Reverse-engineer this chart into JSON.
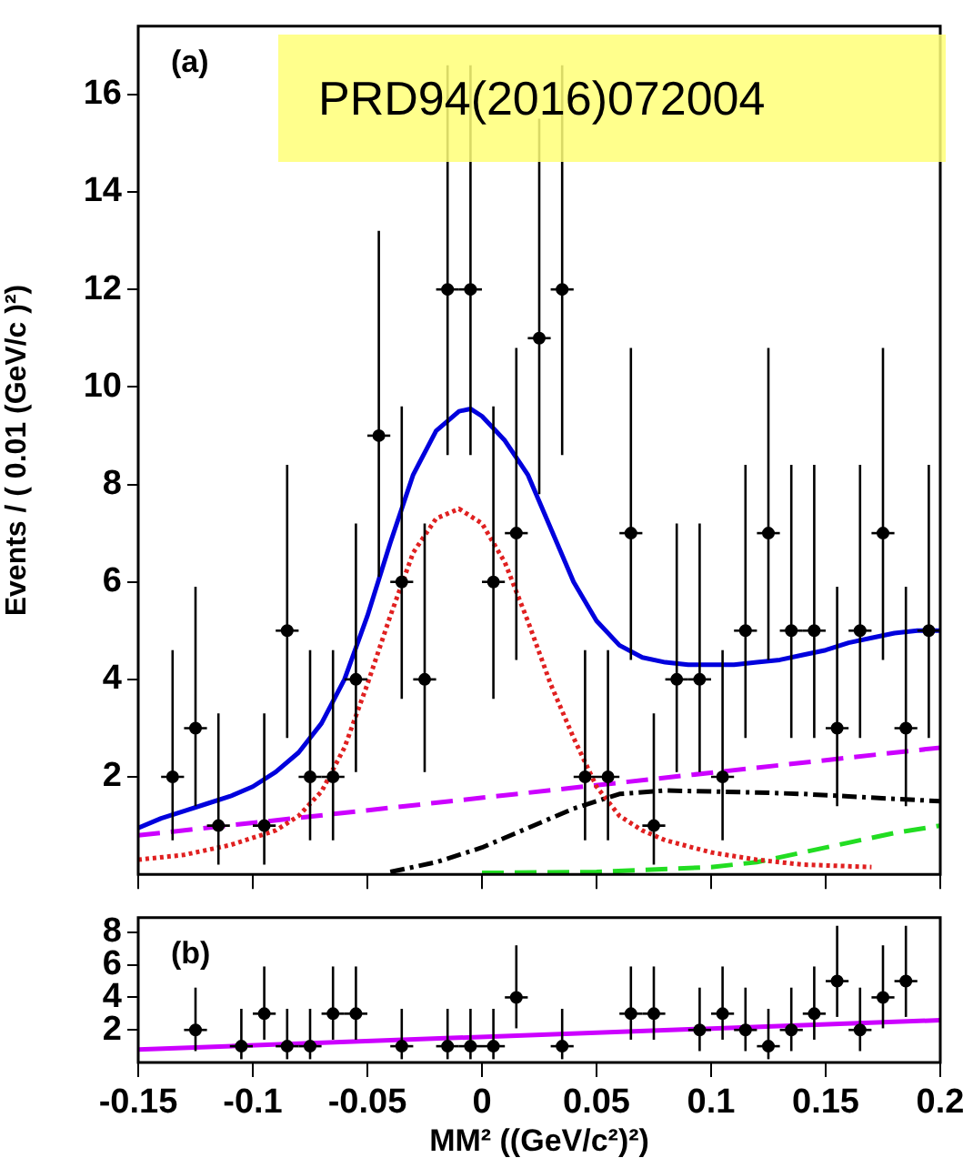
{
  "chart_data": [
    {
      "type": "scatter",
      "ylabel": "Events / ( 0.01 (GeV/c )²)",
      "annotations": [
        "(a)",
        "PRD94(2016)072004"
      ],
      "xlim": [
        -0.15,
        0.2
      ],
      "xticks": [
        -0.15,
        -0.1,
        -0.05,
        0,
        0.05,
        0.1,
        0.15,
        0.2
      ],
      "ylim": [
        0,
        17.4
      ],
      "yticks": [
        2,
        4,
        6,
        8,
        10,
        12,
        14,
        16
      ],
      "tick_labels": "y",
      "grid": false,
      "legend": false,
      "series": [
        {
          "type": "scatter",
          "color": "#000000",
          "marker": "circle",
          "x": [
            -0.135,
            -0.125,
            -0.115,
            -0.095,
            -0.085,
            -0.075,
            -0.065,
            -0.055,
            -0.045,
            -0.035,
            -0.025,
            -0.015,
            -0.005,
            0.005,
            0.015,
            0.025,
            0.035,
            0.045,
            0.055,
            0.065,
            0.075,
            0.085,
            0.095,
            0.105,
            0.115,
            0.125,
            0.135,
            0.145,
            0.155,
            0.165,
            0.175,
            0.185,
            0.195
          ],
          "values": [
            2,
            3,
            1,
            1,
            5,
            2,
            2,
            4,
            9,
            6,
            4,
            12,
            12,
            6,
            7,
            11,
            12,
            2,
            2,
            7,
            1,
            4,
            4,
            2,
            5,
            7,
            5,
            5,
            3,
            5,
            7,
            3,
            5
          ],
          "errors": [
            [
              0.7,
              4.6
            ],
            [
              1.4,
              5.9
            ],
            [
              0.2,
              3.3
            ],
            [
              0.2,
              3.3
            ],
            [
              2.8,
              8.4
            ],
            [
              0.7,
              4.6
            ],
            [
              0.7,
              4.6
            ],
            [
              2.1,
              7.2
            ],
            [
              6.1,
              13.2
            ],
            [
              3.6,
              9.6
            ],
            [
              2.1,
              7.2
            ],
            [
              8.6,
              16.6
            ],
            [
              8.6,
              16.6
            ],
            [
              3.6,
              9.6
            ],
            [
              4.4,
              10.8
            ],
            [
              7.8,
              15.5
            ],
            [
              8.6,
              16.6
            ],
            [
              0.7,
              4.6
            ],
            [
              0.7,
              4.6
            ],
            [
              4.4,
              10.8
            ],
            [
              0.2,
              3.3
            ],
            [
              2.1,
              7.2
            ],
            [
              2.1,
              7.2
            ],
            [
              0.7,
              4.6
            ],
            [
              2.8,
              8.4
            ],
            [
              4.4,
              10.8
            ],
            [
              2.8,
              8.4
            ],
            [
              2.8,
              8.4
            ],
            [
              1.4,
              5.9
            ],
            [
              2.8,
              8.4
            ],
            [
              4.4,
              10.8
            ],
            [
              1.4,
              5.9
            ],
            [
              2.8,
              8.4
            ]
          ],
          "xerrors": [
            0.005,
            0.005,
            0.005,
            0.005,
            0.005,
            0.005,
            0.005,
            0.005,
            0.005,
            0.005,
            0.005,
            0.005,
            0.005,
            0.005,
            0.005,
            0.005,
            0.005,
            0.005,
            0.005,
            0.005,
            0.005,
            0.005,
            0.005,
            0.005,
            0.005,
            0.005,
            0.005,
            0.005,
            0.005,
            0.005,
            0.005,
            0.005,
            0.005
          ]
        },
        {
          "type": "line",
          "color": "#0000dd",
          "marker": "none",
          "line_style": "solid",
          "x": [
            -0.15,
            -0.14,
            -0.13,
            -0.12,
            -0.11,
            -0.1,
            -0.09,
            -0.08,
            -0.07,
            -0.06,
            -0.05,
            -0.04,
            -0.03,
            -0.02,
            -0.01,
            -0.005,
            0,
            0.01,
            0.02,
            0.03,
            0.04,
            0.05,
            0.06,
            0.07,
            0.08,
            0.09,
            0.1,
            0.11,
            0.12,
            0.13,
            0.14,
            0.15,
            0.16,
            0.17,
            0.18,
            0.19,
            0.2
          ],
          "values": [
            0.95,
            1.15,
            1.3,
            1.45,
            1.6,
            1.8,
            2.1,
            2.5,
            3.1,
            4.0,
            5.3,
            6.8,
            8.2,
            9.1,
            9.5,
            9.55,
            9.4,
            8.9,
            8.2,
            7.1,
            6.0,
            5.2,
            4.7,
            4.45,
            4.35,
            4.3,
            4.3,
            4.3,
            4.35,
            4.4,
            4.5,
            4.6,
            4.75,
            4.85,
            4.95,
            5.0,
            5.0
          ]
        },
        {
          "type": "line",
          "color": "#e02020",
          "marker": "none",
          "line_style": "dotted",
          "x": [
            -0.15,
            -0.13,
            -0.11,
            -0.09,
            -0.08,
            -0.07,
            -0.06,
            -0.05,
            -0.04,
            -0.03,
            -0.02,
            -0.01,
            0,
            0.01,
            0.02,
            0.03,
            0.04,
            0.05,
            0.06,
            0.07,
            0.08,
            0.1,
            0.12,
            0.14,
            0.17
          ],
          "values": [
            0.3,
            0.4,
            0.6,
            0.9,
            1.2,
            1.7,
            2.6,
            3.9,
            5.3,
            6.6,
            7.3,
            7.5,
            7.2,
            6.4,
            5.2,
            3.9,
            2.8,
            1.8,
            1.2,
            0.9,
            0.7,
            0.45,
            0.3,
            0.2,
            0.15
          ]
        },
        {
          "type": "line",
          "color": "#cc00ff",
          "marker": "none",
          "line_style": "dashed",
          "x": [
            -0.15,
            0.2
          ],
          "values": [
            0.8,
            2.6
          ]
        },
        {
          "type": "line",
          "color": "#000000",
          "marker": "none",
          "line_style": "dashdot",
          "x": [
            -0.04,
            -0.02,
            0,
            0.02,
            0.04,
            0.06,
            0.08,
            0.1,
            0.12,
            0.14,
            0.16,
            0.18,
            0.2
          ],
          "values": [
            0.05,
            0.25,
            0.55,
            0.95,
            1.35,
            1.65,
            1.72,
            1.7,
            1.68,
            1.65,
            1.6,
            1.55,
            1.5
          ]
        },
        {
          "type": "line",
          "color": "#22dd22",
          "marker": "none",
          "line_style": "dashed",
          "x": [
            0,
            0.05,
            0.1,
            0.12,
            0.14,
            0.16,
            0.18,
            0.2
          ],
          "values": [
            0.03,
            0.05,
            0.15,
            0.25,
            0.45,
            0.65,
            0.85,
            1.0
          ]
        }
      ]
    },
    {
      "type": "scatter",
      "xlabel": "MM² ((GeV/c²)²)",
      "annotations": [
        "(b)"
      ],
      "xlim": [
        -0.15,
        0.2
      ],
      "xticks": [
        -0.15,
        -0.1,
        -0.05,
        0,
        0.05,
        0.1,
        0.15,
        0.2
      ],
      "ylim": [
        0,
        8.9
      ],
      "yticks": [
        2,
        4,
        6,
        8
      ],
      "grid": false,
      "legend": false,
      "series": [
        {
          "type": "scatter",
          "color": "#000000",
          "marker": "circle",
          "x": [
            -0.125,
            -0.105,
            -0.095,
            -0.085,
            -0.075,
            -0.065,
            -0.055,
            -0.035,
            -0.015,
            -0.005,
            0.005,
            0.015,
            0.035,
            0.065,
            0.075,
            0.095,
            0.105,
            0.115,
            0.125,
            0.135,
            0.145,
            0.155,
            0.165,
            0.175,
            0.185
          ],
          "values": [
            2,
            1,
            3,
            1,
            1,
            3,
            3,
            1,
            1,
            1,
            1,
            4,
            1,
            3,
            3,
            2,
            3,
            2,
            1,
            2,
            3,
            5,
            2,
            4,
            5
          ],
          "errors": [
            [
              0.7,
              4.6
            ],
            [
              0.2,
              3.3
            ],
            [
              1.4,
              5.9
            ],
            [
              0.2,
              3.3
            ],
            [
              0.2,
              3.3
            ],
            [
              1.4,
              5.9
            ],
            [
              1.4,
              5.9
            ],
            [
              0.2,
              3.3
            ],
            [
              0.2,
              3.3
            ],
            [
              0.2,
              3.3
            ],
            [
              0.2,
              3.3
            ],
            [
              2.1,
              7.2
            ],
            [
              0.2,
              3.3
            ],
            [
              1.4,
              5.9
            ],
            [
              1.4,
              5.9
            ],
            [
              0.7,
              4.6
            ],
            [
              1.4,
              5.9
            ],
            [
              0.7,
              4.6
            ],
            [
              0.2,
              3.3
            ],
            [
              0.7,
              4.6
            ],
            [
              1.4,
              5.9
            ],
            [
              2.8,
              8.4
            ],
            [
              0.7,
              4.6
            ],
            [
              2.1,
              7.2
            ],
            [
              2.8,
              8.4
            ]
          ],
          "xerrors": [
            0.005,
            0.005,
            0.005,
            0.005,
            0.005,
            0.005,
            0.005,
            0.005,
            0.005,
            0.005,
            0.005,
            0.005,
            0.005,
            0.005,
            0.005,
            0.005,
            0.005,
            0.005,
            0.005,
            0.005,
            0.005,
            0.005,
            0.005,
            0.005,
            0.005
          ]
        },
        {
          "type": "line",
          "color": "#cc00ff",
          "marker": "none",
          "line_style": "solid",
          "x": [
            -0.15,
            0.2
          ],
          "values": [
            0.8,
            2.6
          ]
        }
      ]
    }
  ]
}
